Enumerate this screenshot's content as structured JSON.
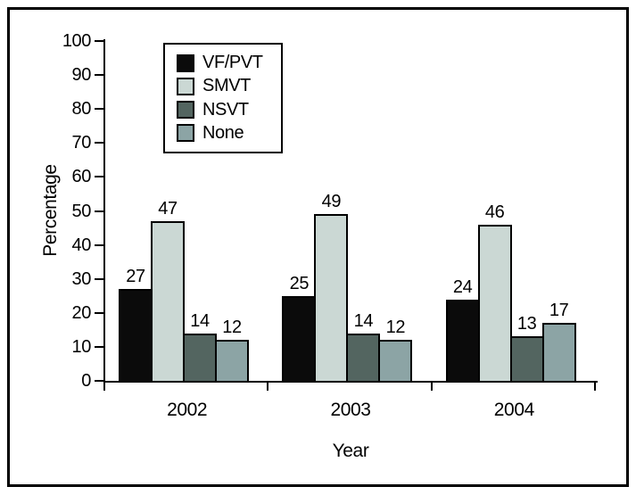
{
  "chart_data": {
    "type": "bar",
    "title": "",
    "categories": [
      "2002",
      "2003",
      "2004"
    ],
    "series": [
      {
        "name": "VF/PVT",
        "color": "#0b0b0b",
        "values": [
          27,
          25,
          24
        ]
      },
      {
        "name": "SMVT",
        "color": "#cbd8d4",
        "values": [
          47,
          49,
          46
        ]
      },
      {
        "name": "NSVT",
        "color": "#536560",
        "values": [
          14,
          14,
          13
        ]
      },
      {
        "name": "None",
        "color": "#8ca4a5",
        "values": [
          12,
          12,
          17
        ]
      }
    ],
    "xlabel": "Year",
    "ylabel": "Percentage",
    "ylim": [
      0,
      100
    ],
    "ytick_step": 10,
    "yticks": [
      0,
      10,
      20,
      30,
      40,
      50,
      60,
      70,
      80,
      90,
      100
    ],
    "bar_value_labels_shown": true,
    "legend_position": "top-left",
    "grid": false,
    "bar_outline_color": "#000000",
    "frame_color": "#000000",
    "background_color": "#ffffff",
    "text_color": "#000000"
  }
}
